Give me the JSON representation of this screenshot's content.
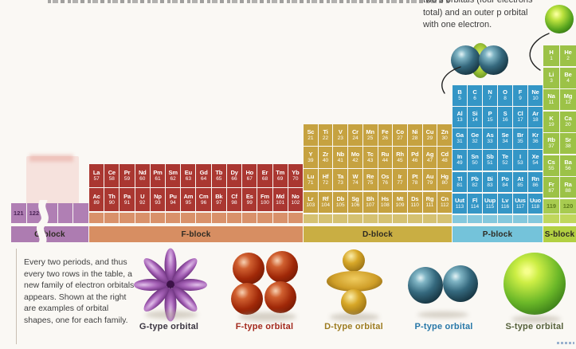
{
  "annotation": {
    "lines": [
      "two s orbitals (four electrons",
      "total) and an outer p orbital",
      "with one electron."
    ]
  },
  "intro_text": "Every two periods, and thus every two rows in the table, a new family of electron orbitals appears. Shown at the right are examples of orbital shapes, one for each family.",
  "blocks": {
    "g": {
      "label": "G-block",
      "cols": 5,
      "filled": "#b07fb4",
      "empty": "#b07fb4",
      "band": "#ad7cb1",
      "future": "#b07fb4",
      "future_text": "#4b2457",
      "text": "#ffffff",
      "rows": [
        [
          {
            "n": "121"
          },
          {
            "n": "122"
          },
          null,
          null,
          null
        ]
      ]
    },
    "f": {
      "label": "F-block",
      "cols": 14,
      "filled": "#aa3731",
      "empty": "#d9916a",
      "band": "#d78e62",
      "text": "#ffffff",
      "rows": [
        [
          {
            "s": "La",
            "n": "57"
          },
          {
            "s": "Ce",
            "n": "58"
          },
          {
            "s": "Pr",
            "n": "59"
          },
          {
            "s": "Nd",
            "n": "60"
          },
          {
            "s": "Pm",
            "n": "61"
          },
          {
            "s": "Sm",
            "n": "62"
          },
          {
            "s": "Eu",
            "n": "63"
          },
          {
            "s": "Gd",
            "n": "64"
          },
          {
            "s": "Tb",
            "n": "65"
          },
          {
            "s": "Dy",
            "n": "66"
          },
          {
            "s": "Ho",
            "n": "67"
          },
          {
            "s": "Er",
            "n": "68"
          },
          {
            "s": "Tm",
            "n": "69"
          },
          {
            "s": "Yb",
            "n": "70"
          }
        ],
        [
          {
            "s": "Ac",
            "n": "89"
          },
          {
            "s": "Th",
            "n": "90"
          },
          {
            "s": "Pa",
            "n": "91"
          },
          {
            "s": "U",
            "n": "92"
          },
          {
            "s": "Np",
            "n": "93"
          },
          {
            "s": "Pu",
            "n": "94"
          },
          {
            "s": "Am",
            "n": "95"
          },
          {
            "s": "Cm",
            "n": "96"
          },
          {
            "s": "Bk",
            "n": "97"
          },
          {
            "s": "Cf",
            "n": "98"
          },
          {
            "s": "Es",
            "n": "99"
          },
          {
            "s": "Fm",
            "n": "100"
          },
          {
            "s": "Md",
            "n": "101"
          },
          {
            "s": "No",
            "n": "102"
          }
        ],
        [
          null,
          null,
          null,
          null,
          null,
          null,
          null,
          null,
          null,
          null,
          null,
          null,
          null,
          null
        ]
      ]
    },
    "d": {
      "label": "D-block",
      "cols": 10,
      "filled": "#c6a240",
      "empty": "#d5c171",
      "band": "#c9ae43",
      "text": "#ffffff",
      "rows": [
        [
          {
            "s": "Sc",
            "n": "21"
          },
          {
            "s": "Ti",
            "n": "22"
          },
          {
            "s": "V",
            "n": "23"
          },
          {
            "s": "Cr",
            "n": "24"
          },
          {
            "s": "Mn",
            "n": "25"
          },
          {
            "s": "Fe",
            "n": "26"
          },
          {
            "s": "Co",
            "n": "27"
          },
          {
            "s": "Ni",
            "n": "28"
          },
          {
            "s": "Cu",
            "n": "29"
          },
          {
            "s": "Zn",
            "n": "30"
          }
        ],
        [
          {
            "s": "Y",
            "n": "39"
          },
          {
            "s": "Zr",
            "n": "40"
          },
          {
            "s": "Nb",
            "n": "41"
          },
          {
            "s": "Mo",
            "n": "42"
          },
          {
            "s": "Tc",
            "n": "43"
          },
          {
            "s": "Ru",
            "n": "44"
          },
          {
            "s": "Rh",
            "n": "45"
          },
          {
            "s": "Pd",
            "n": "46"
          },
          {
            "s": "Ag",
            "n": "47"
          },
          {
            "s": "Cd",
            "n": "48"
          }
        ],
        [
          {
            "s": "Lu",
            "n": "71"
          },
          {
            "s": "Hf",
            "n": "72"
          },
          {
            "s": "Ta",
            "n": "73"
          },
          {
            "s": "W",
            "n": "74"
          },
          {
            "s": "Re",
            "n": "75"
          },
          {
            "s": "Os",
            "n": "76"
          },
          {
            "s": "Ir",
            "n": "77"
          },
          {
            "s": "Pt",
            "n": "78"
          },
          {
            "s": "Au",
            "n": "79"
          },
          {
            "s": "Hg",
            "n": "80"
          }
        ],
        [
          {
            "s": "Lr",
            "n": "103"
          },
          {
            "s": "Rf",
            "n": "104"
          },
          {
            "s": "Db",
            "n": "105"
          },
          {
            "s": "Sg",
            "n": "106"
          },
          {
            "s": "Bh",
            "n": "107"
          },
          {
            "s": "Hs",
            "n": "108"
          },
          {
            "s": "Mt",
            "n": "109"
          },
          {
            "s": "Ds",
            "n": "110"
          },
          {
            "s": "Rg",
            "n": "111"
          },
          {
            "s": "Cn",
            "n": "112"
          }
        ],
        [
          null,
          null,
          null,
          null,
          null,
          null,
          null,
          null,
          null,
          null
        ]
      ]
    },
    "p": {
      "label": "P-block",
      "cols": 6,
      "filled": "#3496c6",
      "empty": "#84c8dd",
      "band": "#74c3da",
      "text": "#ffffff",
      "rows": [
        [
          {
            "s": "B",
            "n": "5"
          },
          {
            "s": "C",
            "n": "6"
          },
          {
            "s": "N",
            "n": "7"
          },
          {
            "s": "O",
            "n": "8"
          },
          {
            "s": "F",
            "n": "9"
          },
          {
            "s": "Ne",
            "n": "10"
          }
        ],
        [
          {
            "s": "Al",
            "n": "13"
          },
          {
            "s": "Si",
            "n": "14"
          },
          {
            "s": "P",
            "n": "15"
          },
          {
            "s": "S",
            "n": "16"
          },
          {
            "s": "Cl",
            "n": "17"
          },
          {
            "s": "Ar",
            "n": "18"
          }
        ],
        [
          {
            "s": "Ga",
            "n": "31"
          },
          {
            "s": "Ge",
            "n": "32"
          },
          {
            "s": "As",
            "n": "33"
          },
          {
            "s": "Se",
            "n": "34"
          },
          {
            "s": "Br",
            "n": "35"
          },
          {
            "s": "Kr",
            "n": "36"
          }
        ],
        [
          {
            "s": "In",
            "n": "49"
          },
          {
            "s": "Sn",
            "n": "50"
          },
          {
            "s": "Sb",
            "n": "51"
          },
          {
            "s": "Te",
            "n": "52"
          },
          {
            "s": "I",
            "n": "53"
          },
          {
            "s": "Xe",
            "n": "54"
          }
        ],
        [
          {
            "s": "Tl",
            "n": "81"
          },
          {
            "s": "Pb",
            "n": "82"
          },
          {
            "s": "Bi",
            "n": "83"
          },
          {
            "s": "Po",
            "n": "84"
          },
          {
            "s": "At",
            "n": "85"
          },
          {
            "s": "Rn",
            "n": "86"
          }
        ],
        [
          {
            "s": "Uut",
            "n": "113"
          },
          {
            "s": "Fl",
            "n": "114"
          },
          {
            "s": "Uup",
            "n": "115"
          },
          {
            "s": "Lv",
            "n": "116"
          },
          {
            "s": "Uus",
            "n": "117"
          },
          {
            "s": "Uuo",
            "n": "118"
          }
        ],
        [
          null,
          null,
          null,
          null,
          null,
          null
        ]
      ]
    },
    "s": {
      "label": "S-block",
      "cols": 2,
      "filled": "#9cc247",
      "empty": "#c0d75c",
      "band": "#b2d042",
      "future": "#a8cb50",
      "future_text": "#5e7c1c",
      "text": "#ffffff",
      "rows": [
        [
          {
            "s": "H",
            "n": "1"
          },
          {
            "s": "He",
            "n": "2"
          }
        ],
        [
          {
            "s": "Li",
            "n": "3"
          },
          {
            "s": "Be",
            "n": "4"
          }
        ],
        [
          {
            "s": "Na",
            "n": "11"
          },
          {
            "s": "Mg",
            "n": "12"
          }
        ],
        [
          {
            "s": "K",
            "n": "19"
          },
          {
            "s": "Ca",
            "n": "20"
          }
        ],
        [
          {
            "s": "Rb",
            "n": "37"
          },
          {
            "s": "Sr",
            "n": "38"
          }
        ],
        [
          {
            "s": "Cs",
            "n": "55"
          },
          {
            "s": "Ba",
            "n": "56"
          }
        ],
        [
          {
            "s": "Fr",
            "n": "87"
          },
          {
            "s": "Ra",
            "n": "88"
          }
        ],
        [
          {
            "n": "119"
          },
          {
            "n": "120"
          }
        ],
        [
          null,
          null
        ]
      ]
    }
  },
  "orbitals": [
    {
      "key": "g",
      "label": "G-type orbital",
      "color": "#3c3642"
    },
    {
      "key": "f",
      "label": "F-type orbital",
      "color": "#a2281c"
    },
    {
      "key": "d",
      "label": "D-type orbital",
      "color": "#9c7b20"
    },
    {
      "key": "p",
      "label": "P-type orbital",
      "color": "#2878a8"
    },
    {
      "key": "s",
      "label": "S-type orbital",
      "color": "#55603a"
    }
  ]
}
